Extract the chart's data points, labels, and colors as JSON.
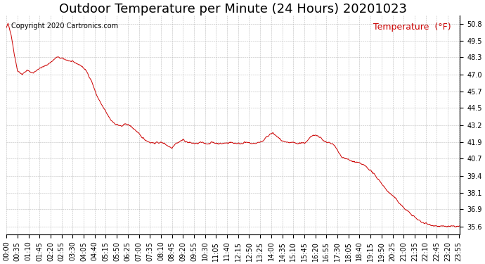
{
  "title": "Outdoor Temperature per Minute (24 Hours) 20201023",
  "copyright_text": "Copyright 2020 Cartronics.com",
  "legend_label": "Temperature  (°F)",
  "line_color": "#cc0000",
  "copyright_color": "#000000",
  "legend_color": "#cc0000",
  "background_color": "#ffffff",
  "grid_color": "#aaaaaa",
  "yticks": [
    35.6,
    36.9,
    38.1,
    39.4,
    40.7,
    41.9,
    43.2,
    44.5,
    45.7,
    47.0,
    48.3,
    49.5,
    50.8
  ],
  "ylim": [
    35.0,
    51.4
  ],
  "xtick_labels": [
    "00:00",
    "00:35",
    "01:10",
    "01:45",
    "02:20",
    "02:55",
    "03:30",
    "04:05",
    "04:40",
    "05:15",
    "05:50",
    "06:25",
    "07:00",
    "07:35",
    "08:10",
    "08:45",
    "09:20",
    "09:55",
    "10:30",
    "11:05",
    "11:40",
    "12:15",
    "12:50",
    "13:25",
    "14:00",
    "14:35",
    "15:10",
    "15:45",
    "16:20",
    "16:55",
    "17:30",
    "18:05",
    "18:40",
    "19:15",
    "19:50",
    "20:25",
    "21:00",
    "21:35",
    "22:10",
    "22:45",
    "23:20",
    "23:55"
  ],
  "title_fontsize": 13,
  "tick_fontsize": 7,
  "legend_fontsize": 9,
  "copyright_fontsize": 7,
  "keypoints": [
    [
      0,
      50.5
    ],
    [
      5,
      50.8
    ],
    [
      15,
      50.0
    ],
    [
      25,
      48.5
    ],
    [
      35,
      47.3
    ],
    [
      50,
      47.0
    ],
    [
      65,
      47.3
    ],
    [
      85,
      47.1
    ],
    [
      100,
      47.4
    ],
    [
      120,
      47.6
    ],
    [
      140,
      47.9
    ],
    [
      160,
      48.3
    ],
    [
      175,
      48.2
    ],
    [
      190,
      48.1
    ],
    [
      200,
      48.0
    ],
    [
      215,
      47.9
    ],
    [
      225,
      47.8
    ],
    [
      240,
      47.6
    ],
    [
      255,
      47.2
    ],
    [
      270,
      46.5
    ],
    [
      285,
      45.5
    ],
    [
      300,
      44.8
    ],
    [
      315,
      44.2
    ],
    [
      330,
      43.6
    ],
    [
      345,
      43.3
    ],
    [
      365,
      43.1
    ],
    [
      380,
      43.3
    ],
    [
      395,
      43.1
    ],
    [
      410,
      42.8
    ],
    [
      425,
      42.4
    ],
    [
      440,
      42.1
    ],
    [
      455,
      41.9
    ],
    [
      470,
      41.85
    ],
    [
      485,
      41.9
    ],
    [
      500,
      41.85
    ],
    [
      515,
      41.6
    ],
    [
      525,
      41.5
    ],
    [
      535,
      41.8
    ],
    [
      545,
      41.9
    ],
    [
      560,
      42.1
    ],
    [
      575,
      41.9
    ],
    [
      590,
      41.85
    ],
    [
      605,
      41.8
    ],
    [
      615,
      41.9
    ],
    [
      625,
      41.85
    ],
    [
      640,
      41.8
    ],
    [
      650,
      41.9
    ],
    [
      665,
      41.85
    ],
    [
      680,
      41.8
    ],
    [
      695,
      41.85
    ],
    [
      710,
      41.9
    ],
    [
      725,
      41.85
    ],
    [
      740,
      41.8
    ],
    [
      755,
      41.9
    ],
    [
      770,
      41.85
    ],
    [
      785,
      41.8
    ],
    [
      800,
      41.9
    ],
    [
      815,
      42.0
    ],
    [
      825,
      42.3
    ],
    [
      835,
      42.5
    ],
    [
      845,
      42.6
    ],
    [
      855,
      42.4
    ],
    [
      865,
      42.2
    ],
    [
      875,
      42.0
    ],
    [
      885,
      41.9
    ],
    [
      895,
      41.85
    ],
    [
      905,
      41.9
    ],
    [
      915,
      41.85
    ],
    [
      925,
      41.8
    ],
    [
      935,
      41.9
    ],
    [
      945,
      41.85
    ],
    [
      955,
      42.0
    ],
    [
      965,
      42.3
    ],
    [
      975,
      42.5
    ],
    [
      985,
      42.4
    ],
    [
      995,
      42.3
    ],
    [
      1005,
      42.0
    ],
    [
      1015,
      41.9
    ],
    [
      1025,
      41.85
    ],
    [
      1035,
      41.8
    ],
    [
      1045,
      41.5
    ],
    [
      1055,
      41.1
    ],
    [
      1065,
      40.8
    ],
    [
      1075,
      40.7
    ],
    [
      1085,
      40.6
    ],
    [
      1095,
      40.5
    ],
    [
      1110,
      40.4
    ],
    [
      1125,
      40.3
    ],
    [
      1140,
      40.1
    ],
    [
      1155,
      39.8
    ],
    [
      1170,
      39.4
    ],
    [
      1185,
      39.0
    ],
    [
      1200,
      38.5
    ],
    [
      1215,
      38.1
    ],
    [
      1230,
      37.8
    ],
    [
      1245,
      37.4
    ],
    [
      1260,
      37.0
    ],
    [
      1275,
      36.7
    ],
    [
      1290,
      36.4
    ],
    [
      1305,
      36.1
    ],
    [
      1320,
      35.9
    ],
    [
      1340,
      35.75
    ],
    [
      1360,
      35.65
    ],
    [
      1380,
      35.6
    ],
    [
      1400,
      35.6
    ],
    [
      1420,
      35.6
    ],
    [
      1439,
      35.6
    ]
  ]
}
